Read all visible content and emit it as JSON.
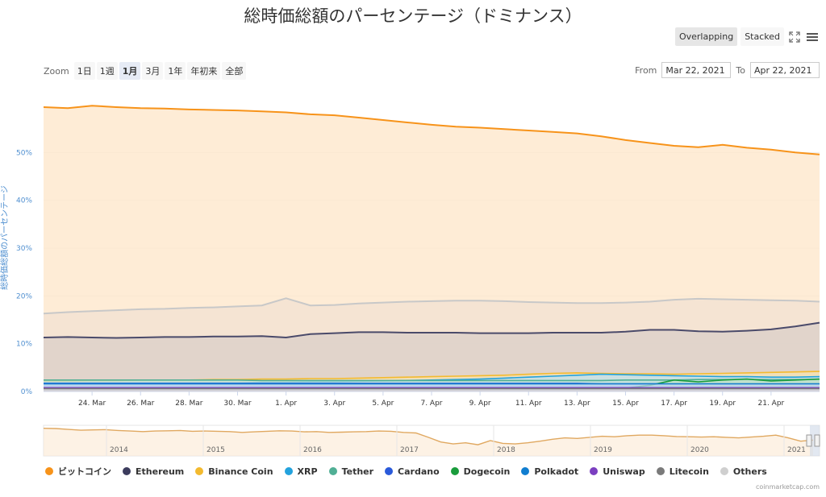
{
  "header": {
    "title": "総時価総額のパーセンテージ（ドミナンス）"
  },
  "toolbar": {
    "overlapping_label": "Overlapping",
    "stacked_label": "Stacked",
    "fullscreen_icon": "fullscreen-icon",
    "menu_icon": "menu-icon"
  },
  "zoom": {
    "label": "Zoom",
    "options": [
      "1日",
      "1週",
      "1月",
      "3月",
      "1年",
      "年初来",
      "全部"
    ],
    "selected": "1月"
  },
  "range": {
    "from_label": "From",
    "from_value": "Mar 22, 2021",
    "to_label": "To",
    "to_value": "Apr 22, 2021"
  },
  "credit": "coinmarketcap.com",
  "chart_data": {
    "type": "area",
    "ylabel": "総時価総額のパーセンテージ",
    "ylim": [
      0,
      60
    ],
    "yticks": [
      "0%",
      "10%",
      "20%",
      "30%",
      "40%",
      "50%"
    ],
    "xticks": [
      "24. Mar",
      "26. Mar",
      "28. Mar",
      "30. Mar",
      "1. Apr",
      "3. Apr",
      "5. Apr",
      "7. Apr",
      "9. Apr",
      "11. Apr",
      "13. Apr",
      "15. Apr",
      "17. Apr",
      "19. Apr",
      "21. Apr"
    ],
    "x": [
      "2021-03-22",
      "2021-03-23",
      "2021-03-24",
      "2021-03-25",
      "2021-03-26",
      "2021-03-27",
      "2021-03-28",
      "2021-03-29",
      "2021-03-30",
      "2021-03-31",
      "2021-04-01",
      "2021-04-02",
      "2021-04-03",
      "2021-04-04",
      "2021-04-05",
      "2021-04-06",
      "2021-04-07",
      "2021-04-08",
      "2021-04-09",
      "2021-04-10",
      "2021-04-11",
      "2021-04-12",
      "2021-04-13",
      "2021-04-14",
      "2021-04-15",
      "2021-04-16",
      "2021-04-17",
      "2021-04-18",
      "2021-04-19",
      "2021-04-20",
      "2021-04-21",
      "2021-04-22",
      "2021-04-23"
    ],
    "grid": true,
    "legend_position": "bottom",
    "series": [
      {
        "name": "ビットコイン",
        "color": "#f7931a",
        "fill": "#fde6c8",
        "values": [
          59.5,
          59.3,
          59.8,
          59.5,
          59.3,
          59.2,
          59.0,
          58.9,
          58.8,
          58.6,
          58.4,
          58.0,
          57.8,
          57.3,
          56.8,
          56.3,
          55.8,
          55.4,
          55.2,
          54.9,
          54.6,
          54.3,
          54.0,
          53.4,
          52.6,
          52.0,
          51.4,
          51.1,
          51.6,
          51.0,
          50.6,
          50.0,
          49.6
        ]
      },
      {
        "name": "Others",
        "color": "#c8c8c8",
        "fill": "#f2e2d2",
        "values": [
          16.3,
          16.6,
          16.8,
          17.0,
          17.2,
          17.3,
          17.5,
          17.6,
          17.8,
          18.0,
          19.5,
          18.0,
          18.1,
          18.4,
          18.6,
          18.8,
          18.9,
          19.0,
          19.0,
          18.9,
          18.7,
          18.6,
          18.5,
          18.5,
          18.6,
          18.8,
          19.2,
          19.4,
          19.3,
          19.2,
          19.1,
          19.0,
          18.8
        ]
      },
      {
        "name": "Ethereum",
        "color": "#4a4a6a",
        "fill": "#d9cfc8",
        "values": [
          11.3,
          11.4,
          11.3,
          11.2,
          11.3,
          11.4,
          11.4,
          11.5,
          11.5,
          11.6,
          11.3,
          12.0,
          12.2,
          12.4,
          12.4,
          12.3,
          12.3,
          12.3,
          12.2,
          12.2,
          12.2,
          12.3,
          12.3,
          12.3,
          12.5,
          12.9,
          12.9,
          12.6,
          12.5,
          12.7,
          13.0,
          13.6,
          14.4
        ]
      },
      {
        "name": "Binance Coin",
        "color": "#f3ba2f",
        "fill": "#f6e3b0",
        "values": [
          2.2,
          2.2,
          2.3,
          2.3,
          2.4,
          2.4,
          2.4,
          2.5,
          2.5,
          2.6,
          2.6,
          2.7,
          2.7,
          2.8,
          2.9,
          3.0,
          3.1,
          3.2,
          3.3,
          3.4,
          3.6,
          3.8,
          3.9,
          3.8,
          3.7,
          3.7,
          3.6,
          3.7,
          3.8,
          3.9,
          4.0,
          4.1,
          4.2
        ]
      },
      {
        "name": "XRP",
        "color": "#23a2dd",
        "fill": "#bde0ef",
        "values": [
          1.8,
          1.8,
          1.8,
          1.8,
          1.8,
          1.8,
          1.8,
          1.8,
          1.8,
          1.9,
          1.9,
          2.0,
          2.0,
          2.1,
          2.2,
          2.3,
          2.4,
          2.5,
          2.6,
          2.8,
          3.0,
          3.2,
          3.4,
          3.6,
          3.5,
          3.4,
          3.3,
          3.2,
          3.1,
          3.1,
          3.0,
          3.0,
          3.1
        ]
      },
      {
        "name": "Tether",
        "color": "#50af95",
        "fill": "#c3e3d9",
        "values": [
          2.4,
          2.4,
          2.4,
          2.4,
          2.4,
          2.4,
          2.4,
          2.4,
          2.4,
          2.3,
          2.3,
          2.3,
          2.3,
          2.3,
          2.3,
          2.3,
          2.3,
          2.3,
          2.3,
          2.3,
          2.3,
          2.3,
          2.3,
          2.3,
          2.4,
          2.4,
          2.4,
          2.5,
          2.5,
          2.5,
          2.5,
          2.5,
          2.5
        ]
      },
      {
        "name": "Cardano",
        "color": "#2a5ada",
        "fill": "#c4d0ef",
        "values": [
          1.7,
          1.7,
          1.7,
          1.7,
          1.7,
          1.7,
          1.7,
          1.7,
          1.7,
          1.7,
          1.7,
          1.7,
          1.7,
          1.7,
          1.7,
          1.7,
          1.7,
          1.7,
          1.7,
          1.7,
          1.7,
          1.7,
          1.7,
          1.6,
          1.6,
          1.6,
          1.6,
          1.6,
          1.6,
          1.6,
          1.6,
          1.6,
          1.6
        ]
      },
      {
        "name": "Dogecoin",
        "color": "#1a9c3c",
        "fill": "#bfe0c7",
        "values": [
          0.3,
          0.3,
          0.3,
          0.3,
          0.3,
          0.3,
          0.3,
          0.3,
          0.3,
          0.3,
          0.3,
          0.3,
          0.3,
          0.3,
          0.3,
          0.3,
          0.3,
          0.3,
          0.3,
          0.4,
          0.4,
          0.4,
          0.4,
          0.5,
          0.7,
          1.3,
          2.4,
          2.0,
          2.4,
          2.6,
          2.2,
          2.4,
          2.6
        ]
      },
      {
        "name": "Polkadot",
        "color": "#117ed0",
        "fill": "#bcd6ee",
        "values": [
          1.6,
          1.6,
          1.6,
          1.6,
          1.6,
          1.6,
          1.6,
          1.6,
          1.6,
          1.6,
          1.6,
          1.6,
          1.6,
          1.6,
          1.6,
          1.6,
          1.6,
          1.6,
          1.6,
          1.6,
          1.6,
          1.6,
          1.6,
          1.6,
          1.6,
          1.6,
          1.6,
          1.6,
          1.6,
          1.6,
          1.6,
          1.6,
          1.6
        ]
      },
      {
        "name": "Uniswap",
        "color": "#7b3fc0",
        "fill": "#d6c6ea",
        "values": [
          0.8,
          0.8,
          0.8,
          0.8,
          0.8,
          0.8,
          0.8,
          0.8,
          0.8,
          0.8,
          0.8,
          0.8,
          0.8,
          0.8,
          0.8,
          0.8,
          0.8,
          0.8,
          0.8,
          0.8,
          0.8,
          0.8,
          0.8,
          0.8,
          0.8,
          0.8,
          0.8,
          0.8,
          0.8,
          0.8,
          0.8,
          0.8,
          0.8
        ]
      },
      {
        "name": "Litecoin",
        "color": "#7a7a7a",
        "fill": "#d4d4d4",
        "values": [
          0.6,
          0.6,
          0.6,
          0.6,
          0.6,
          0.6,
          0.6,
          0.6,
          0.6,
          0.6,
          0.6,
          0.6,
          0.6,
          0.6,
          0.6,
          0.6,
          0.6,
          0.6,
          0.6,
          0.6,
          0.6,
          0.6,
          0.6,
          0.6,
          0.6,
          0.6,
          0.6,
          0.6,
          0.6,
          0.6,
          0.6,
          0.6,
          0.6
        ]
      }
    ],
    "navigator": {
      "xticks": [
        "2014",
        "2015",
        "2016",
        "2017",
        "2018",
        "2019",
        "2020",
        "2021"
      ],
      "values": [
        95,
        94,
        91,
        88,
        89,
        90,
        87,
        85,
        83,
        85,
        86,
        87,
        84,
        85,
        84,
        83,
        80,
        82,
        84,
        86,
        85,
        82,
        83,
        80,
        81,
        82,
        83,
        85,
        84,
        80,
        78,
        62,
        45,
        38,
        42,
        35,
        50,
        40,
        38,
        42,
        48,
        55,
        60,
        58,
        62,
        66,
        64,
        68,
        70,
        70,
        68,
        65,
        64,
        63,
        64,
        62,
        60,
        63,
        66,
        70,
        60,
        48,
        52
      ]
    }
  },
  "legend": [
    {
      "name": "ビットコイン",
      "color": "#f7931a"
    },
    {
      "name": "Ethereum",
      "color": "#3c3c5d"
    },
    {
      "name": "Binance Coin",
      "color": "#f3ba2f"
    },
    {
      "name": "XRP",
      "color": "#23a2dd"
    },
    {
      "name": "Tether",
      "color": "#50af95"
    },
    {
      "name": "Cardano",
      "color": "#2a5ada"
    },
    {
      "name": "Dogecoin",
      "color": "#1a9c3c"
    },
    {
      "name": "Polkadot",
      "color": "#117ed0"
    },
    {
      "name": "Uniswap",
      "color": "#7b3fc0"
    },
    {
      "name": "Litecoin",
      "color": "#7a7a7a"
    },
    {
      "name": "Others",
      "color": "#cfcfcf"
    }
  ]
}
